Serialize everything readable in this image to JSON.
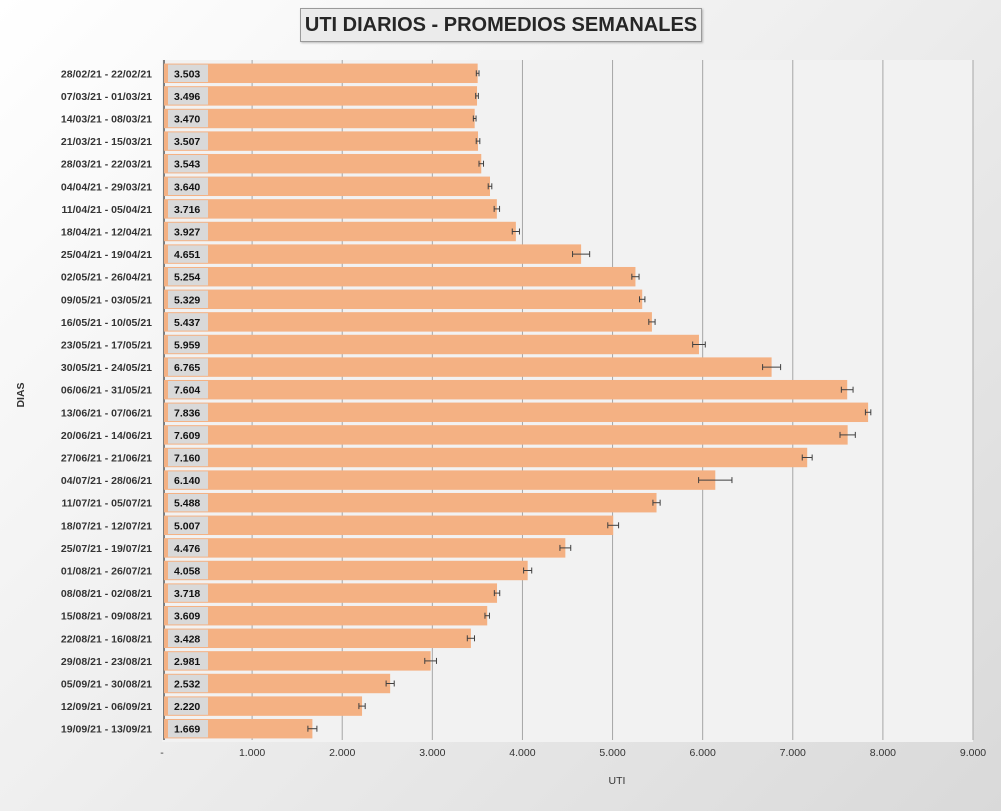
{
  "chart_data": {
    "type": "bar",
    "orientation": "horizontal",
    "title": "UTI DIARIOS - PROMEDIOS SEMANALES",
    "xlabel": "UTI",
    "ylabel": "DIAS",
    "xlim": [
      0,
      9000
    ],
    "x_ticks": [
      "-",
      "1.000",
      "2.000",
      "3.000",
      "4.000",
      "5.000",
      "6.000",
      "7.000",
      "8.000",
      "9.000"
    ],
    "grid": true,
    "bar_color": "#f4b183",
    "categories": [
      "28/02/21 - 22/02/21",
      "07/03/21 - 01/03/21",
      "14/03/21 - 08/03/21",
      "21/03/21 - 15/03/21",
      "28/03/21 - 22/03/21",
      "04/04/21 - 29/03/21",
      "11/04/21 - 05/04/21",
      "18/04/21 - 12/04/21",
      "25/04/21 - 19/04/21",
      "02/05/21 - 26/04/21",
      "09/05/21 - 03/05/21",
      "16/05/21 - 10/05/21",
      "23/05/21 - 17/05/21",
      "30/05/21 - 24/05/21",
      "06/06/21 - 31/05/21",
      "13/06/21 - 07/06/21",
      "20/06/21 - 14/06/21",
      "27/06/21 - 21/06/21",
      "04/07/21 - 28/06/21",
      "11/07/21 - 05/07/21",
      "18/07/21 - 12/07/21",
      "25/07/21 - 19/07/21",
      "01/08/21 - 26/07/21",
      "08/08/21 - 02/08/21",
      "15/08/21 - 09/08/21",
      "22/08/21 - 16/08/21",
      "29/08/21 - 23/08/21",
      "05/09/21 - 30/08/21",
      "12/09/21 - 06/09/21",
      "19/09/21 - 13/09/21"
    ],
    "values": [
      3503,
      3496,
      3470,
      3507,
      3543,
      3640,
      3716,
      3927,
      4651,
      5254,
      5329,
      5437,
      5959,
      6765,
      7604,
      7836,
      7609,
      7160,
      6140,
      5488,
      5007,
      4476,
      4058,
      3718,
      3609,
      3428,
      2981,
      2532,
      2220,
      1669
    ],
    "value_labels": [
      "3.503",
      "3.496",
      "3.470",
      "3.507",
      "3.543",
      "3.640",
      "3.716",
      "3.927",
      "4.651",
      "5.254",
      "5.329",
      "5.437",
      "5.959",
      "6.765",
      "7.604",
      "7.836",
      "7.609",
      "7.160",
      "6.140",
      "5.488",
      "5.007",
      "4.476",
      "4.058",
      "3.718",
      "3.609",
      "3.428",
      "2.981",
      "2.532",
      "2.220",
      "1.669"
    ],
    "error": [
      15,
      15,
      15,
      20,
      25,
      20,
      30,
      40,
      95,
      40,
      30,
      35,
      70,
      100,
      65,
      30,
      85,
      55,
      185,
      40,
      60,
      60,
      45,
      30,
      25,
      40,
      65,
      45,
      35,
      50
    ]
  }
}
